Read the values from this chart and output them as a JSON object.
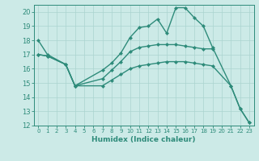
{
  "xlabel": "Humidex (Indice chaleur)",
  "bg_color": "#cceae7",
  "grid_color": "#aad4d0",
  "line_color": "#2e8b7a",
  "xlim": [
    -0.5,
    23.5
  ],
  "ylim": [
    12,
    20.5
  ],
  "yticks": [
    12,
    13,
    14,
    15,
    16,
    17,
    18,
    19,
    20
  ],
  "xticks": [
    0,
    1,
    2,
    3,
    4,
    5,
    6,
    7,
    8,
    9,
    10,
    11,
    12,
    13,
    14,
    15,
    16,
    17,
    18,
    19,
    20,
    21,
    22,
    23
  ],
  "top_x": [
    0,
    1,
    3,
    4,
    7,
    8,
    9,
    10,
    11,
    12,
    13,
    14,
    15,
    16,
    17,
    18,
    19,
    21,
    22,
    23
  ],
  "top_y": [
    18.0,
    17.0,
    16.3,
    14.8,
    15.9,
    16.4,
    17.1,
    18.2,
    18.9,
    19.0,
    19.5,
    18.5,
    20.3,
    20.3,
    19.6,
    19.0,
    17.5,
    14.8,
    13.2,
    12.2
  ],
  "mid_x": [
    0,
    1,
    3,
    4,
    7,
    8,
    9,
    10,
    11,
    12,
    13,
    14,
    15,
    16,
    17,
    18,
    19
  ],
  "mid_y": [
    17.0,
    16.9,
    16.3,
    14.8,
    15.3,
    15.9,
    16.5,
    17.2,
    17.5,
    17.6,
    17.7,
    17.7,
    17.7,
    17.6,
    17.5,
    17.4,
    17.4
  ],
  "bot_x": [
    0,
    1,
    3,
    4,
    7,
    8,
    9,
    10,
    11,
    12,
    13,
    14,
    15,
    16,
    17,
    18,
    19,
    21,
    22,
    23
  ],
  "bot_y": [
    17.0,
    16.9,
    16.3,
    14.8,
    14.8,
    15.2,
    15.6,
    16.0,
    16.2,
    16.3,
    16.4,
    16.5,
    16.5,
    16.5,
    16.4,
    16.3,
    16.2,
    14.8,
    13.2,
    12.2
  ]
}
